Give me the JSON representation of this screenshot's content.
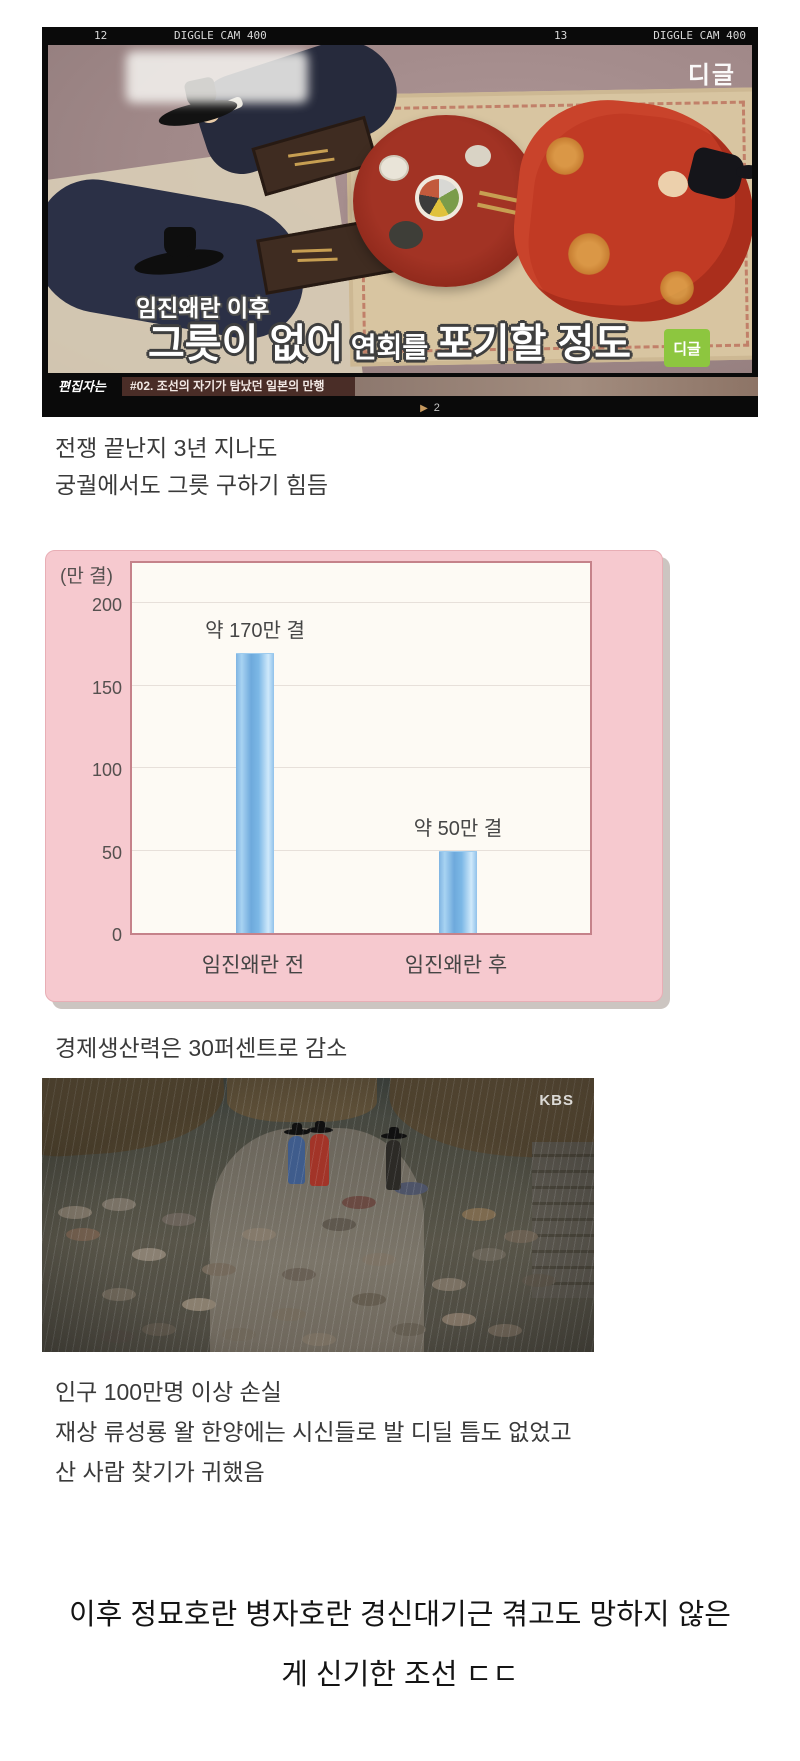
{
  "video": {
    "film_strip": {
      "frame_left": "12",
      "cam_left": "DIGGLE CAM 400",
      "frame_right": "13",
      "cam_right": "DIGGLE CAM 400"
    },
    "watermark": "디글",
    "subtitle_top": "임진왜란 이후",
    "subtitle_main_1": "그릇이 없어",
    "subtitle_main_2": " 연회를 ",
    "subtitle_main_3": "포기할 정도",
    "badge": "디글",
    "series_label": "편집자는",
    "episode_title": "#02. 조선의 자기가 탐났던 일본의 만행",
    "play_icon": "▶",
    "page_number": "2"
  },
  "paragraph1": {
    "line1": "전쟁 끝난지 3년 지나도",
    "line2": "궁궐에서도 그릇 구하기 힘듬"
  },
  "chart_data": {
    "type": "bar",
    "unit_label": "(만 결)",
    "categories": [
      "임진왜란 전",
      "임진왜란 후"
    ],
    "values": [
      170,
      50
    ],
    "bar_labels": [
      "약 170만 결",
      "약 50만 결"
    ],
    "y_ticks": [
      0,
      50,
      100,
      150,
      200
    ],
    "ylim": [
      0,
      226
    ],
    "grid": true,
    "legend_position": "none",
    "bar_color": "#85bce6",
    "panel_color": "#f6c9cf",
    "plot_bg": "#fdfaf4"
  },
  "paragraph2": {
    "line1": "경제생산력은 30퍼센트로 감소"
  },
  "drama": {
    "watermark": "KBS"
  },
  "paragraph3": {
    "line1": "인구 100만명 이상 손실",
    "line2": "재상 류성룡 왈 한양에는 시신들로 발 디딜 틈도 없었고",
    "line3": "산 사람 찾기가 귀했음"
  },
  "caption": {
    "line1": "이후 정묘호란 병자호란 경신대기근 겪고도 망하지 않은",
    "line2": "게 신기한 조선 ㄷㄷ"
  }
}
